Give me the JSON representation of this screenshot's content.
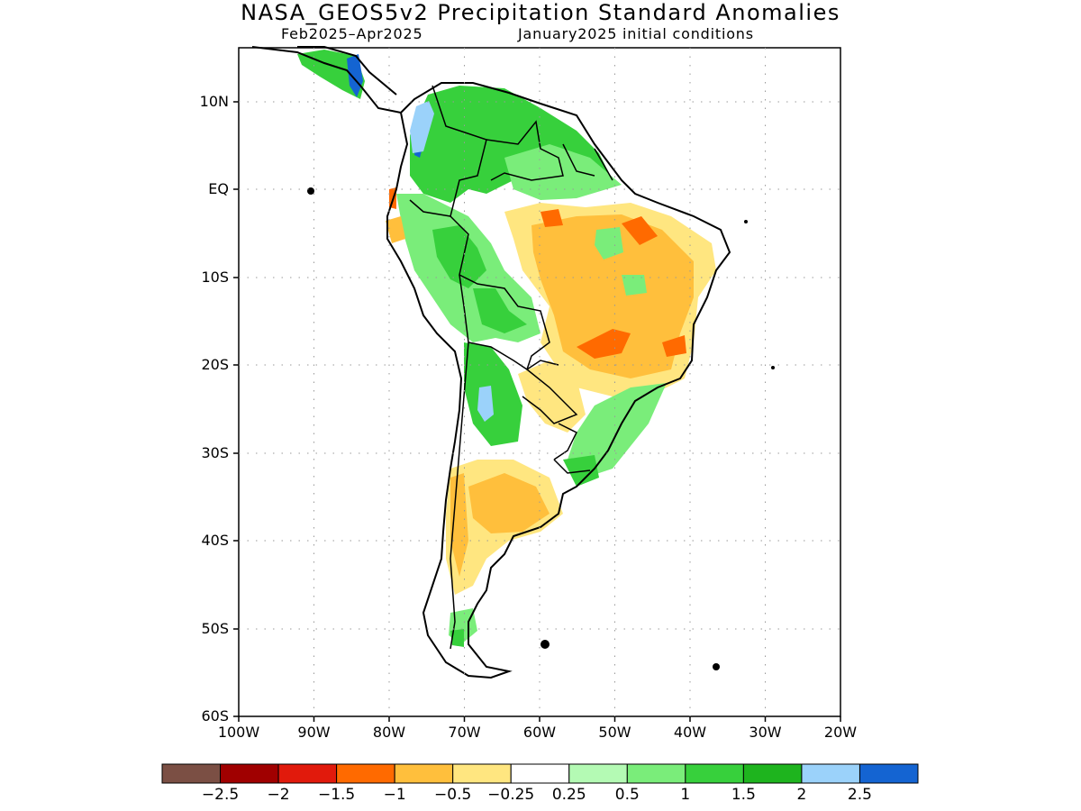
{
  "title": "NASA_GEOS5v2 Precipitation Standard Anomalies",
  "subtitle_left": "Feb2025–Apr2025",
  "subtitle_right": "January2025 initial conditions",
  "map": {
    "lon_range": [
      -100,
      -20
    ],
    "lat_range": [
      -60,
      15
    ],
    "y_ticks": [
      "10N",
      "EQ",
      "10S",
      "20S",
      "30S",
      "40S",
      "50S",
      "60S"
    ],
    "x_ticks": [
      "100W",
      "90W",
      "80W",
      "70W",
      "60W",
      "50W",
      "40W",
      "30W",
      "20W"
    ],
    "grid": "dotted"
  },
  "colorbar": {
    "colors": [
      "#7b4f44",
      "#a00000",
      "#e11a0c",
      "#ff6a00",
      "#ffbf3c",
      "#ffe680",
      "#ffffff",
      "#b4fab4",
      "#7aed7a",
      "#37d03c",
      "#1eb41e",
      "#9bd2fa",
      "#1464d2"
    ],
    "labels": [
      "−2.5",
      "−2",
      "−1.5",
      "−1",
      "−0.5",
      "−0.25",
      "0.25",
      "0.5",
      "1",
      "1.5",
      "2",
      "2.5"
    ]
  }
}
